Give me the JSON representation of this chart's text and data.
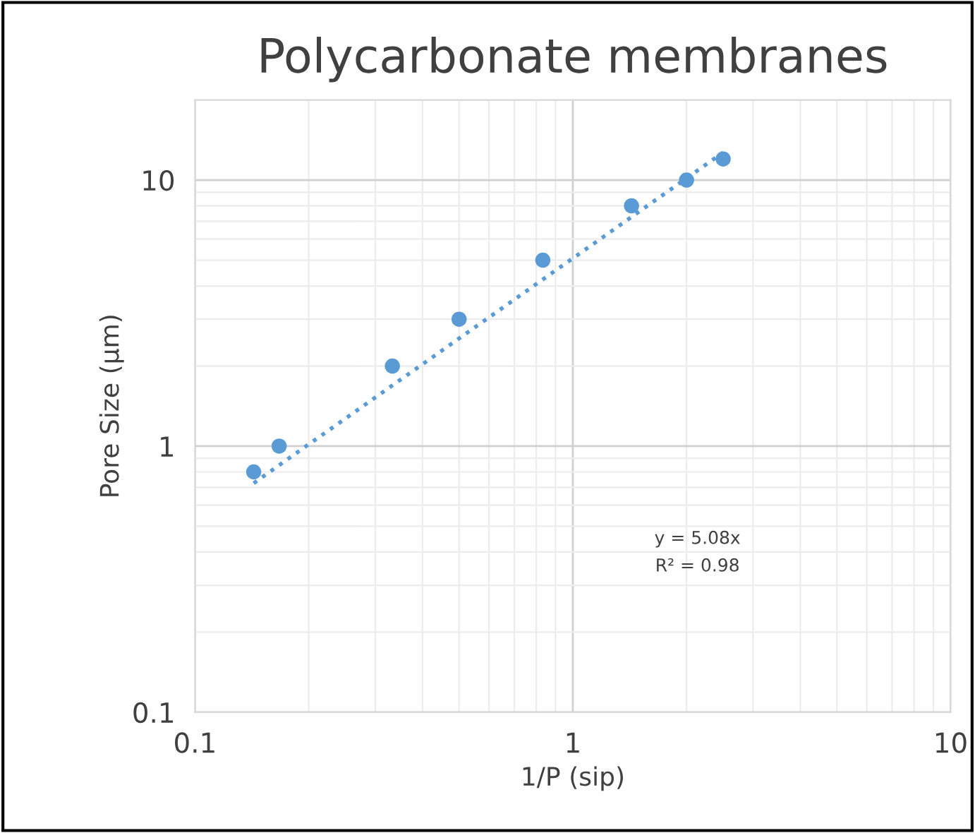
{
  "chart_data": {
    "type": "scatter",
    "title": "Polycarbonate membranes",
    "xlabel": "1/P (sip)",
    "ylabel": "Pore Size (µm)",
    "log": "xy",
    "xlim": [
      0.1,
      10
    ],
    "ylim": [
      0.1,
      20
    ],
    "xticks": [
      0.1,
      1,
      10
    ],
    "yticks": [
      0.1,
      1,
      10
    ],
    "grid": true,
    "marker": "circle",
    "series": [
      {
        "color": "#5b9bd5",
        "x": [
          0.143,
          0.167,
          0.333,
          0.5,
          0.833,
          1.43,
          2.0,
          2.5
        ],
        "values": [
          0.8,
          1,
          2,
          3,
          5,
          8,
          10,
          12
        ]
      },
      {
        "type": "line",
        "marker": "none",
        "color": "#5b9bd5",
        "line_style": "dotted",
        "x": [
          0.143,
          2.5
        ],
        "values": [
          0.726,
          12.7
        ]
      }
    ],
    "annotations": [
      "y = 5.08x",
      "R² = 0.98"
    ]
  }
}
